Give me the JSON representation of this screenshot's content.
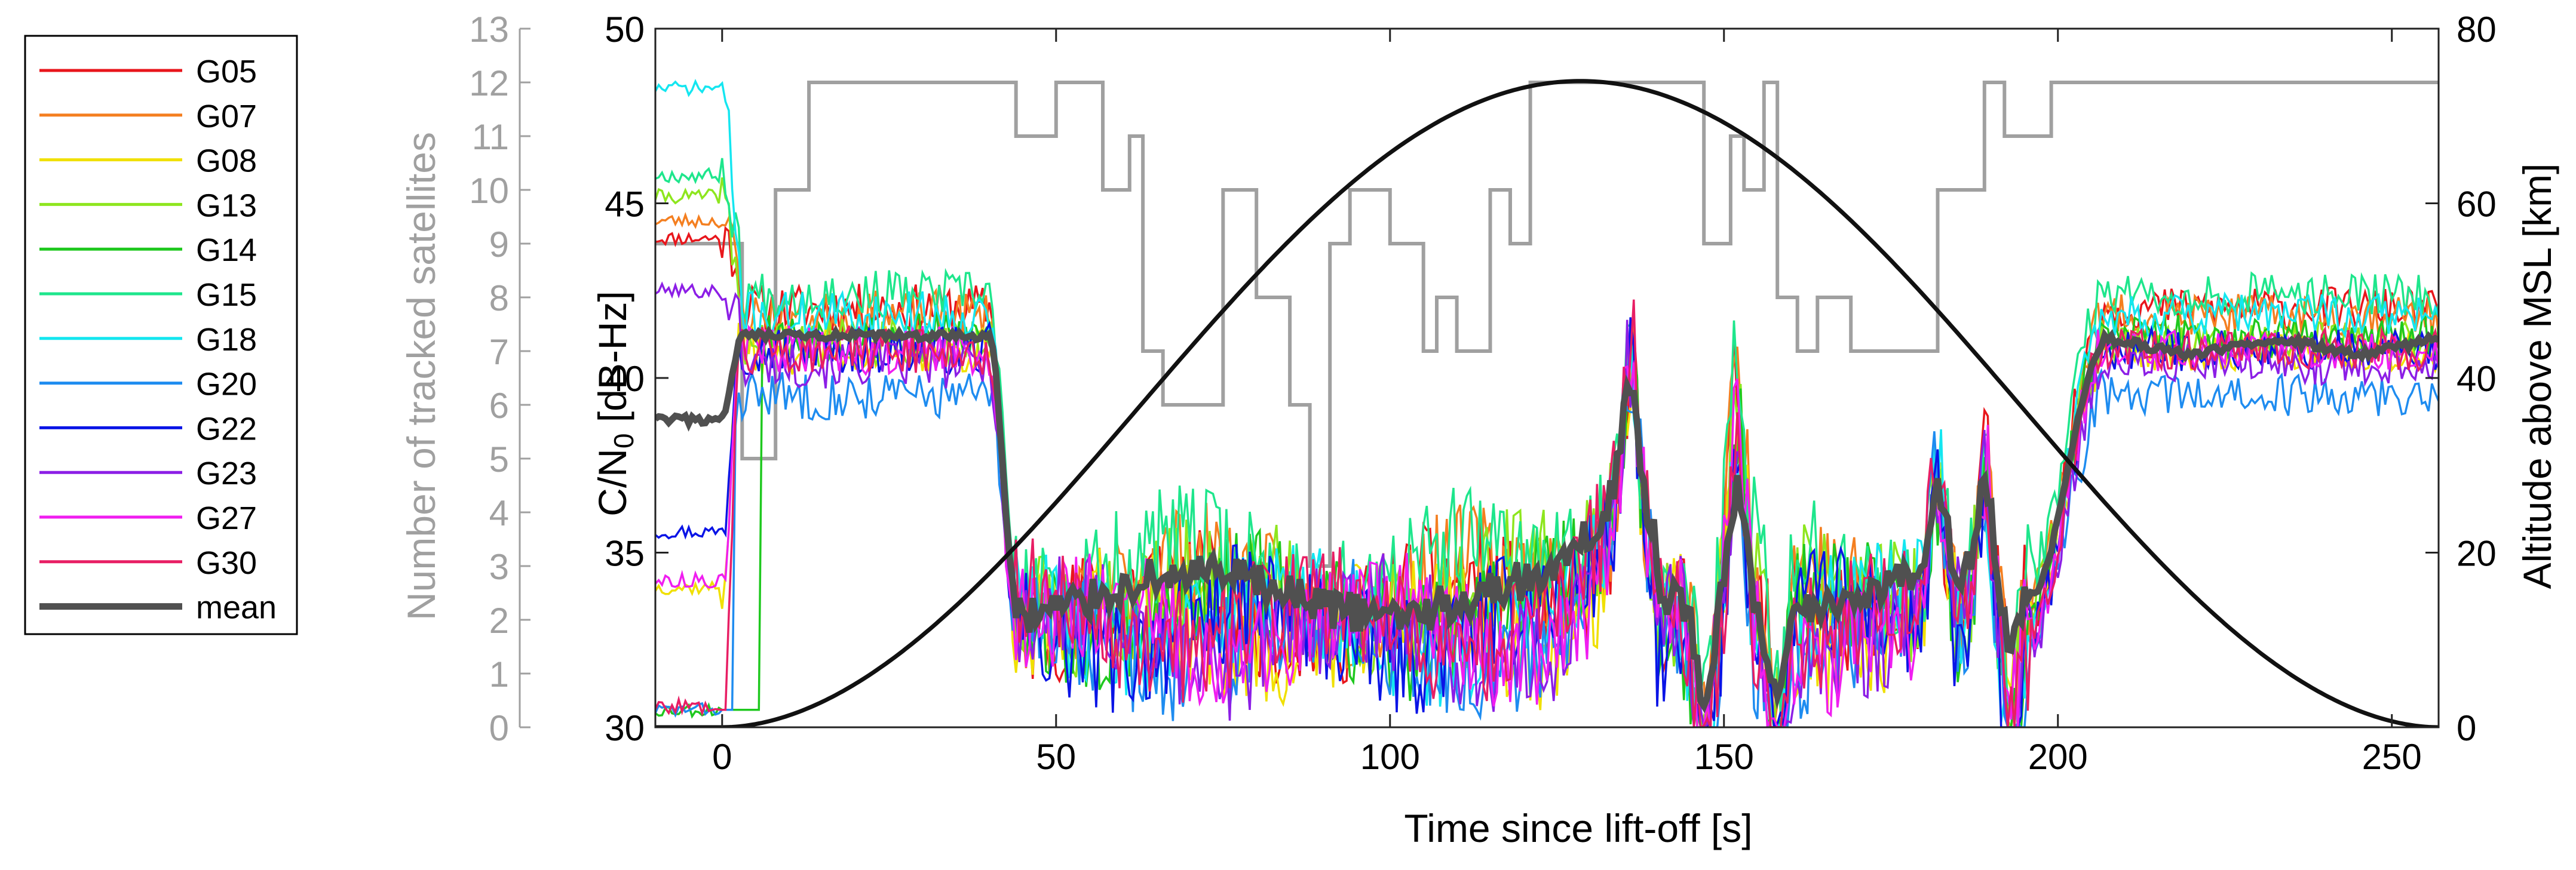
{
  "chart_data": {
    "type": "line",
    "xlabel": "Time since lift-off [s]",
    "ylabel_main": "C/N",
    "ylabel_main_sub": "0",
    "ylabel_main_unit": " [dB-Hz]",
    "ylabel_sats": "Number of tracked satellites",
    "ylabel_alt": "Altitude above MSL [km]",
    "xlim": [
      -10,
      257
    ],
    "ylim_cn0": [
      30,
      50
    ],
    "ylim_sats": [
      0,
      13
    ],
    "ylim_alt": [
      0,
      80
    ],
    "x_ticks": [
      0,
      50,
      100,
      150,
      200,
      250
    ],
    "x_tick_labels": [
      "0",
      "50",
      "100",
      "150",
      "200",
      "250"
    ],
    "cn0_ticks": [
      30,
      35,
      40,
      45,
      50
    ],
    "cn0_tick_labels": [
      "30",
      "35",
      "40",
      "45",
      "50"
    ],
    "sats_ticks": [
      0,
      1,
      2,
      3,
      4,
      5,
      6,
      7,
      8,
      9,
      10,
      11,
      12,
      13
    ],
    "sats_tick_labels": [
      "0",
      "1",
      "2",
      "3",
      "4",
      "5",
      "6",
      "7",
      "8",
      "9",
      "10",
      "11",
      "12",
      "13"
    ],
    "alt_ticks": [
      0,
      20,
      40,
      60,
      80
    ],
    "alt_tick_labels": [
      "0",
      "20",
      "40",
      "60",
      "80"
    ],
    "legend_position": "outside-left",
    "series": [
      {
        "name": "G05",
        "color": "#e8161c",
        "initial": 44.0,
        "plateau": 42.0,
        "low": 33.5,
        "seed": 11,
        "lock": 0
      },
      {
        "name": "G07",
        "color": "#f47f20",
        "initial": 44.5,
        "plateau": 41.8,
        "low": 34.0,
        "seed": 23,
        "lock": 0
      },
      {
        "name": "G08",
        "color": "#f0e000",
        "initial": 34.0,
        "plateau": 40.8,
        "low": 32.8,
        "seed": 37,
        "lock": 0
      },
      {
        "name": "G13",
        "color": "#8ee61e",
        "initial": 45.2,
        "plateau": 41.0,
        "low": 33.8,
        "seed": 41,
        "lock": 0
      },
      {
        "name": "G14",
        "color": "#1ec81e",
        "initial": 30.5,
        "plateau": 41.2,
        "low": 33.2,
        "seed": 53,
        "lock": 6
      },
      {
        "name": "G15",
        "color": "#1ee68c",
        "initial": 45.8,
        "plateau": 42.4,
        "low": 34.5,
        "seed": 67,
        "lock": 0
      },
      {
        "name": "G18",
        "color": "#14e6f0",
        "initial": 48.3,
        "plateau": 41.8,
        "low": 33.0,
        "seed": 71,
        "lock": 0
      },
      {
        "name": "G20",
        "color": "#1e8cf0",
        "initial": 30.5,
        "plateau": 39.5,
        "low": 32.5,
        "seed": 83,
        "lock": 2
      },
      {
        "name": "G22",
        "color": "#0a14e6",
        "initial": 35.6,
        "plateau": 40.8,
        "low": 32.8,
        "seed": 97,
        "lock": 0
      },
      {
        "name": "G23",
        "color": "#8c1ee6",
        "initial": 42.5,
        "plateau": 40.4,
        "low": 32.6,
        "seed": 101,
        "lock": 0
      },
      {
        "name": "G27",
        "color": "#f01ef0",
        "initial": 34.2,
        "plateau": 40.8,
        "low": 32.8,
        "seed": 113,
        "lock": 0
      },
      {
        "name": "G30",
        "color": "#e81e64",
        "initial": 30.6,
        "plateau": 40.8,
        "low": 33.0,
        "seed": 127,
        "lock": 1
      }
    ],
    "mean": {
      "name": "mean",
      "color": "#505050",
      "pre_liftoff": 38.8,
      "plateau": 41.2,
      "low": 33.8
    },
    "tracked_satellites_steps": [
      [
        -10,
        9
      ],
      [
        2,
        9
      ],
      [
        3,
        5
      ],
      [
        7,
        5
      ],
      [
        8,
        10
      ],
      [
        12,
        10
      ],
      [
        13,
        12
      ],
      [
        43,
        12
      ],
      [
        44,
        11
      ],
      [
        49,
        11
      ],
      [
        50,
        12
      ],
      [
        56,
        12
      ],
      [
        57,
        10
      ],
      [
        60,
        10
      ],
      [
        61,
        11
      ],
      [
        62,
        11
      ],
      [
        63,
        7
      ],
      [
        65,
        7
      ],
      [
        66,
        6
      ],
      [
        74,
        6
      ],
      [
        75,
        10
      ],
      [
        79,
        10
      ],
      [
        80,
        8
      ],
      [
        84,
        8
      ],
      [
        85,
        6
      ],
      [
        87,
        6
      ],
      [
        88,
        3
      ],
      [
        90,
        3
      ],
      [
        91,
        9
      ],
      [
        93,
        9
      ],
      [
        94,
        10
      ],
      [
        99,
        10
      ],
      [
        100,
        9
      ],
      [
        104,
        9
      ],
      [
        105,
        7
      ],
      [
        106,
        7
      ],
      [
        107,
        8
      ],
      [
        109,
        8
      ],
      [
        110,
        7
      ],
      [
        114,
        7
      ],
      [
        115,
        10
      ],
      [
        117,
        10
      ],
      [
        118,
        9
      ],
      [
        120,
        9
      ],
      [
        121,
        12
      ],
      [
        146,
        12
      ],
      [
        147,
        9
      ],
      [
        150,
        9
      ],
      [
        151,
        11
      ],
      [
        152,
        11
      ],
      [
        153,
        10
      ],
      [
        155,
        10
      ],
      [
        156,
        12
      ],
      [
        157,
        12
      ],
      [
        158,
        8
      ],
      [
        160,
        8
      ],
      [
        161,
        7
      ],
      [
        163,
        7
      ],
      [
        164,
        8
      ],
      [
        168,
        8
      ],
      [
        169,
        7
      ],
      [
        181,
        7
      ],
      [
        182,
        10
      ],
      [
        188,
        10
      ],
      [
        189,
        12
      ],
      [
        191,
        12
      ],
      [
        192,
        11
      ],
      [
        198,
        11
      ],
      [
        199,
        12
      ],
      [
        257,
        12
      ]
    ],
    "altitude_profile": {
      "apex_time": 125,
      "apex_km": 74,
      "burnout_time": 257,
      "liftoff_time": 0
    },
    "dip_events": [
      {
        "t": 136,
        "dir": 1,
        "amp": 5.0
      },
      {
        "t": 147,
        "dir": -1,
        "amp": 4.0
      },
      {
        "t": 152,
        "dir": 1,
        "amp": 6.0
      },
      {
        "t": 158,
        "dir": -1,
        "amp": 4.0
      },
      {
        "t": 182,
        "dir": 1,
        "amp": 4.0
      },
      {
        "t": 189,
        "dir": 1,
        "amp": 4.0
      },
      {
        "t": 193,
        "dir": -1,
        "amp": 3.0
      }
    ]
  }
}
